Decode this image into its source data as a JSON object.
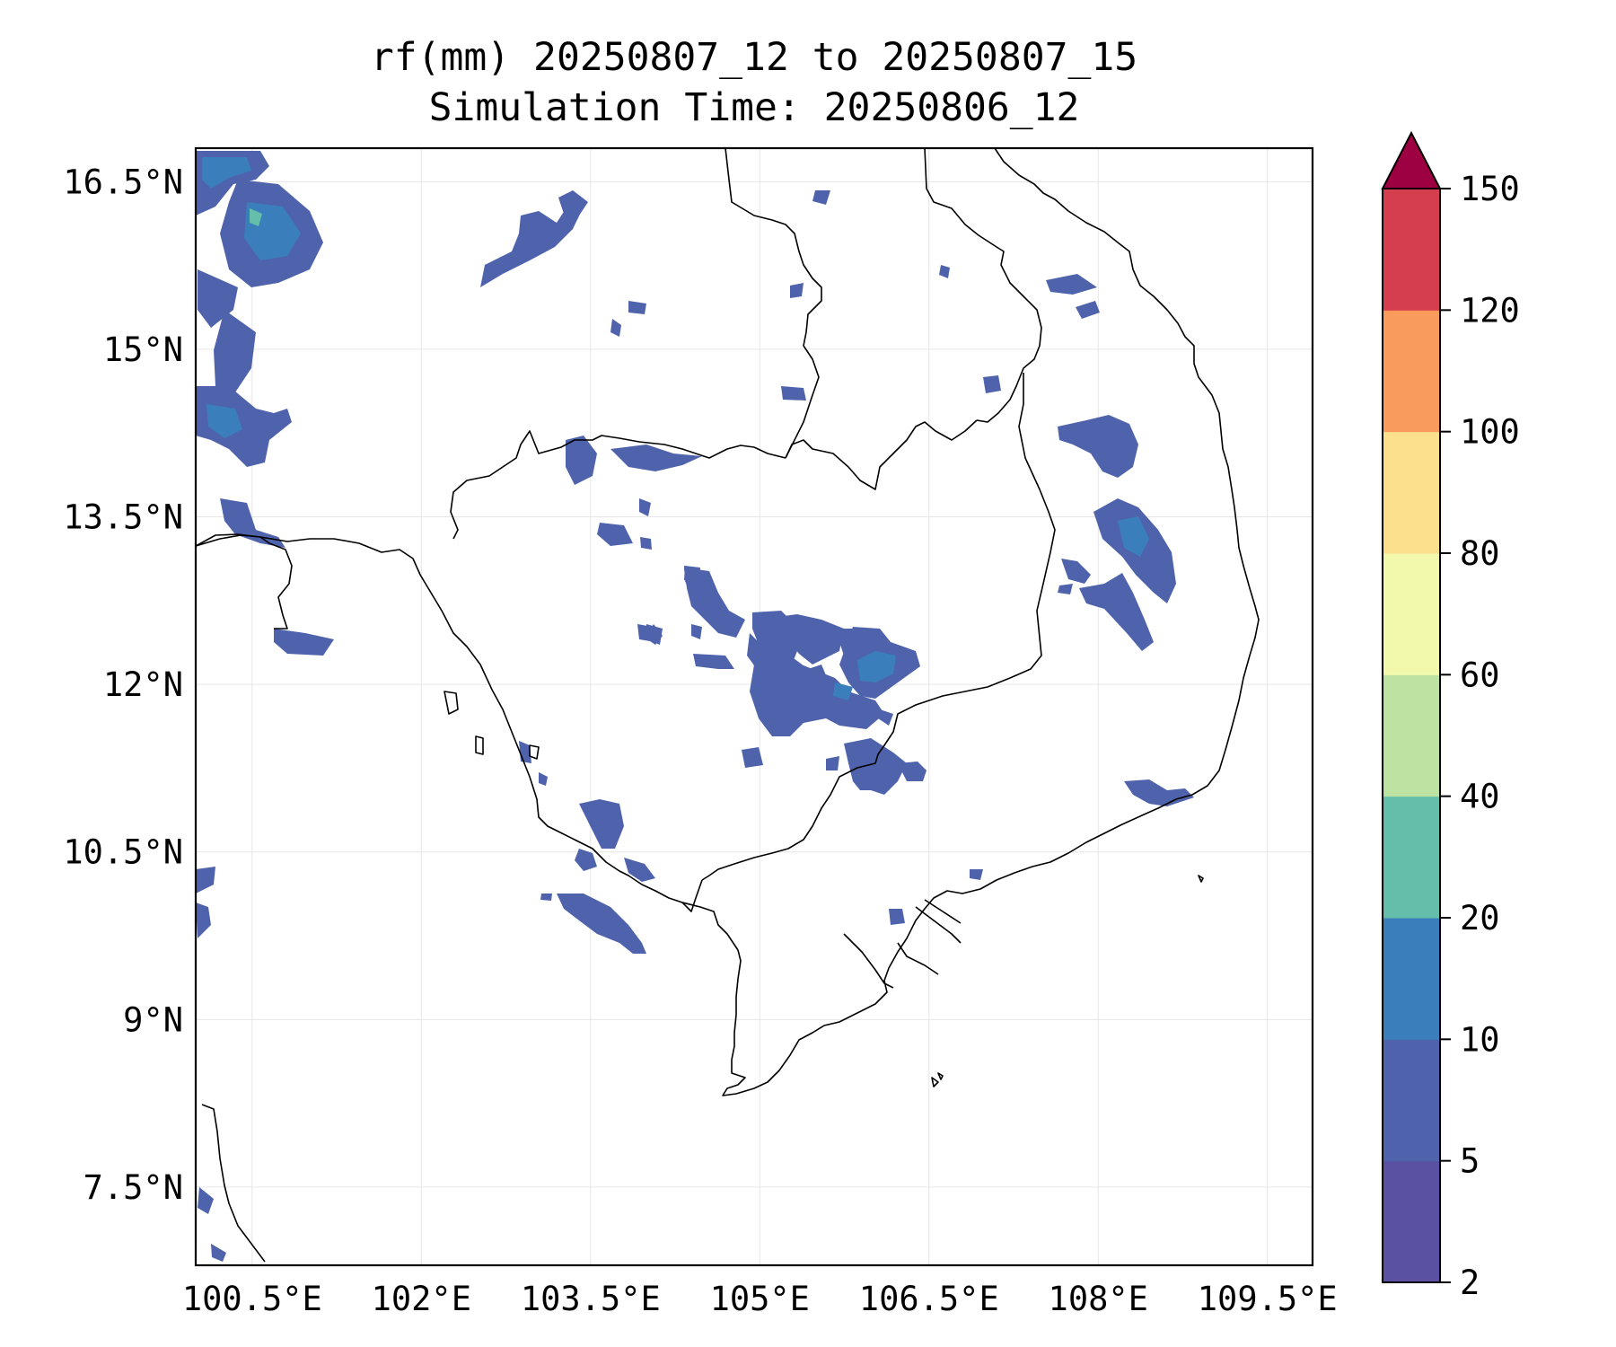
{
  "title": {
    "line1": "rf(mm) 20250807_12 to 20250807_15",
    "line2": "Simulation Time: 20250806_12"
  },
  "map": {
    "lon_range": [
      100.0,
      109.9
    ],
    "lat_range": [
      6.8,
      16.8
    ],
    "lon_ticks": [
      {
        "value": 100.5,
        "label": "100.5°E"
      },
      {
        "value": 102.0,
        "label": "102°E"
      },
      {
        "value": 103.5,
        "label": "103.5°E"
      },
      {
        "value": 105.0,
        "label": "105°E"
      },
      {
        "value": 106.5,
        "label": "106.5°E"
      },
      {
        "value": 108.0,
        "label": "108°E"
      },
      {
        "value": 109.5,
        "label": "109.5°E"
      }
    ],
    "lat_ticks": [
      {
        "value": 16.5,
        "label": "16.5°N"
      },
      {
        "value": 15.0,
        "label": "15°N"
      },
      {
        "value": 13.5,
        "label": "13.5°N"
      },
      {
        "value": 12.0,
        "label": "12°N"
      },
      {
        "value": 10.5,
        "label": "10.5°N"
      },
      {
        "value": 9.0,
        "label": "9°N"
      },
      {
        "value": 7.5,
        "label": "7.5°N"
      }
    ],
    "grid": true
  },
  "colorbar": {
    "levels": [
      {
        "label": "2",
        "color": "#5a51a3"
      },
      {
        "label": "5",
        "color": "#4e63ac"
      },
      {
        "label": "10",
        "color": "#3a7fbb"
      },
      {
        "label": "20",
        "color": "#64bea9"
      },
      {
        "label": "40",
        "color": "#bde3a2"
      },
      {
        "label": "60",
        "color": "#f2f9ad"
      },
      {
        "label": "80",
        "color": "#fce08e"
      },
      {
        "label": "100",
        "color": "#f99b5c"
      },
      {
        "label": "120",
        "color": "#d53e4f"
      },
      {
        "label": "150",
        "color": ""
      }
    ],
    "extend_color": "#9e0142"
  }
}
